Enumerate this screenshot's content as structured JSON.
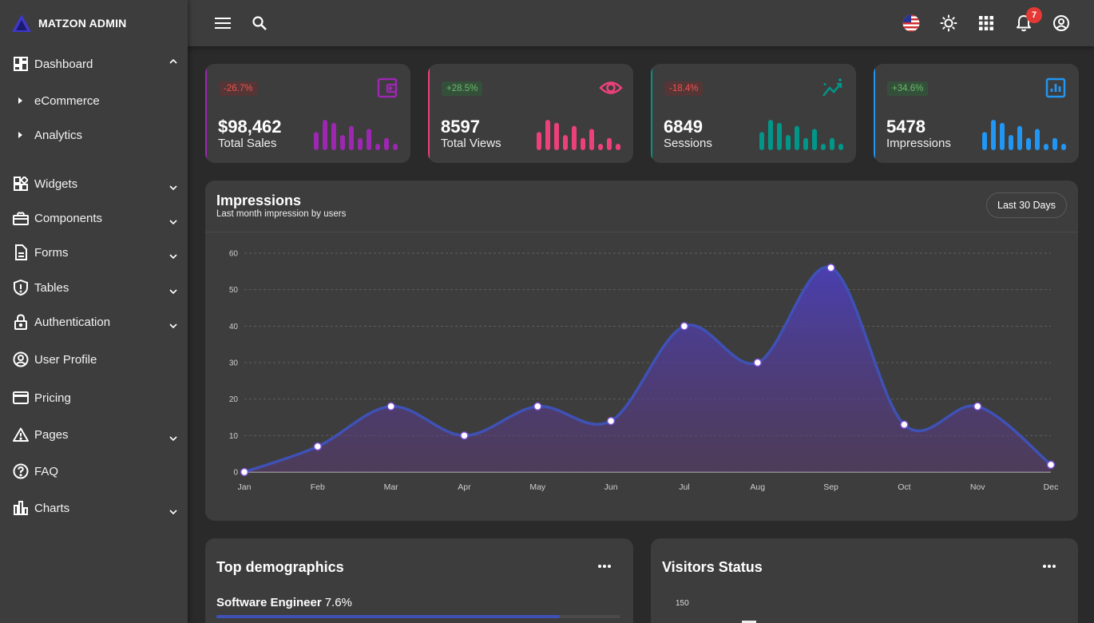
{
  "brand": {
    "name": "MATZON ADMIN"
  },
  "sidebar": {
    "items": [
      {
        "label": "Dashboard",
        "icon": "dashboard-icon",
        "expanded": true
      },
      {
        "label": "eCommerce",
        "sub": true
      },
      {
        "label": "Analytics",
        "sub": true
      },
      {
        "label": "Widgets",
        "icon": "widgets-icon"
      },
      {
        "label": "Components",
        "icon": "components-icon"
      },
      {
        "label": "Forms",
        "icon": "document-icon"
      },
      {
        "label": "Tables",
        "icon": "shield-icon"
      },
      {
        "label": "Authentication",
        "icon": "lock-icon"
      },
      {
        "label": "User Profile",
        "icon": "user-circle-icon"
      },
      {
        "label": "Pricing",
        "icon": "credit-card-icon"
      },
      {
        "label": "Pages",
        "icon": "warning-icon"
      },
      {
        "label": "FAQ",
        "icon": "help-icon"
      },
      {
        "label": "Charts",
        "icon": "bar-chart-icon"
      }
    ]
  },
  "topbar": {
    "notifications_count": "7"
  },
  "stats": [
    {
      "change": "-26.7%",
      "value": "$98,462",
      "label": "Total Sales",
      "color": "#9c27b0",
      "trend": "negative",
      "icon": "wallet-icon",
      "bars": [
        6,
        10,
        9,
        5,
        8,
        4,
        7,
        2,
        4,
        1
      ]
    },
    {
      "change": "+28.5%",
      "value": "8597",
      "label": "Total Views",
      "color": "#ec407a",
      "trend": "positive",
      "icon": "eye-icon",
      "bars": [
        6,
        10,
        9,
        5,
        8,
        4,
        7,
        2,
        4,
        1
      ]
    },
    {
      "change": "-18.4%",
      "value": "6849",
      "label": "Sessions",
      "color": "#009688",
      "trend": "negative",
      "icon": "trending-icon",
      "bars": [
        6,
        10,
        9,
        5,
        8,
        4,
        7,
        2,
        4,
        1
      ]
    },
    {
      "change": "+34.6%",
      "value": "5478",
      "label": "Impressions",
      "color": "#2196f3",
      "trend": "positive",
      "icon": "analytics-icon",
      "bars": [
        6,
        10,
        9,
        5,
        8,
        4,
        7,
        2,
        4,
        1
      ]
    }
  ],
  "impressions": {
    "title": "Impressions",
    "subtitle": "Last month impression by users",
    "filter_label": "Last 30 Days"
  },
  "chart_data": {
    "type": "area",
    "categories": [
      "Jan",
      "Feb",
      "Mar",
      "Apr",
      "May",
      "Jun",
      "Jul",
      "Aug",
      "Sep",
      "Oct",
      "Nov",
      "Dec"
    ],
    "values": [
      0,
      7,
      18,
      10,
      18,
      14,
      40,
      30,
      56,
      13,
      18,
      2
    ],
    "ylim": [
      0,
      60
    ],
    "yticks": [
      0,
      10,
      20,
      30,
      40,
      50,
      60
    ],
    "grid": true,
    "color": "#3f51b5"
  },
  "demographics": {
    "title": "Top demographics",
    "item_label": "Software Engineer",
    "item_value": "7.6%",
    "item_fill": 0.85
  },
  "visitors": {
    "title": "Visitors Status",
    "first_tick": "150"
  }
}
